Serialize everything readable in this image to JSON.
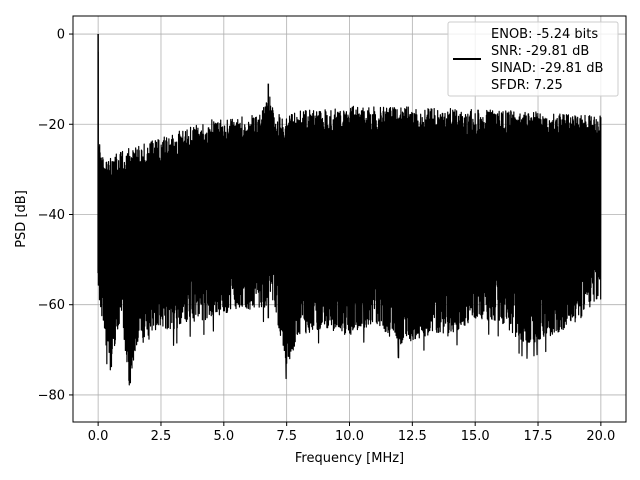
{
  "chart_data": {
    "type": "line",
    "title": "",
    "xlabel": "Frequency [MHz]",
    "ylabel": "PSD [dB]",
    "xlim": [
      -1.0,
      21.0
    ],
    "ylim": [
      -86.0,
      4.0
    ],
    "x_ticks": [
      0.0,
      2.5,
      5.0,
      7.5,
      10.0,
      12.5,
      15.0,
      17.5,
      20.0
    ],
    "x_tick_labels": [
      "0.0",
      "2.5",
      "5.0",
      "7.5",
      "10.0",
      "12.5",
      "15.0",
      "17.5",
      "20.0"
    ],
    "y_ticks": [
      0,
      -20,
      -40,
      -60,
      -80
    ],
    "y_tick_labels": [
      "0",
      "−20",
      "−40",
      "−60",
      "−80"
    ],
    "grid": true,
    "legend_position": "top-right",
    "line_color": "#000000",
    "legend": [
      "ENOB: -5.24 bits",
      "SNR: -29.81 dB",
      "SINAD: -29.81 dB",
      "SFDR: 7.25"
    ],
    "series": [
      {
        "x": [
          0.0,
          0.01,
          0.25,
          0.5,
          0.75,
          1.0,
          1.25,
          1.5,
          2.0,
          2.5,
          3.0,
          3.5,
          4.0,
          4.5,
          5.0,
          5.5,
          6.0,
          6.5,
          6.77,
          7.0,
          7.5,
          8.0,
          9.0,
          10.0,
          11.0,
          12.0,
          13.0,
          14.0,
          15.0,
          16.0,
          17.0,
          18.0,
          19.0,
          20.0
        ],
        "upper": [
          0.0,
          -23.0,
          -27.0,
          -27.0,
          -26.0,
          -26.0,
          -25.0,
          -25.0,
          -24.0,
          -23.0,
          -22.0,
          -21.0,
          -20.0,
          -19.0,
          -19.0,
          -18.5,
          -18.0,
          -18.0,
          -11.0,
          -18.0,
          -17.5,
          -17.0,
          -16.5,
          -16.0,
          -16.0,
          -16.0,
          -16.5,
          -16.5,
          -16.5,
          -17.0,
          -17.0,
          -17.5,
          -18.0,
          -18.0
        ],
        "lower": [
          -53.0,
          -62.0,
          -70.0,
          -78.0,
          -69.0,
          -69.0,
          -82.0,
          -72.0,
          -71.0,
          -68.0,
          -69.0,
          -67.0,
          -67.0,
          -66.0,
          -65.0,
          -64.0,
          -64.0,
          -64.0,
          -63.0,
          -63.0,
          -77.0,
          -70.0,
          -68.0,
          -70.0,
          -67.0,
          -72.0,
          -70.0,
          -70.0,
          -66.0,
          -67.0,
          -72.0,
          -70.0,
          -67.0,
          -62.0
        ]
      }
    ]
  }
}
